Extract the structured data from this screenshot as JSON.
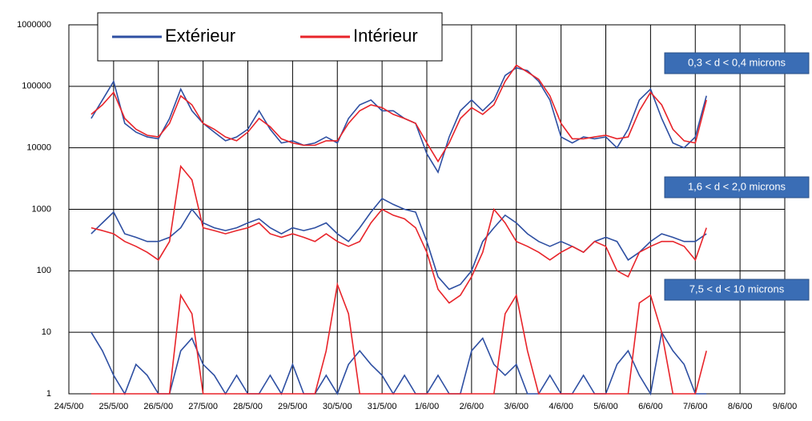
{
  "chart_data": {
    "type": "line",
    "x": [
      0.5,
      0.75,
      1,
      1.25,
      1.5,
      1.75,
      2,
      2.25,
      2.5,
      2.75,
      3,
      3.25,
      3.5,
      3.75,
      4,
      4.25,
      4.5,
      4.75,
      5,
      5.25,
      5.5,
      5.75,
      6,
      6.25,
      6.5,
      6.75,
      7,
      7.25,
      7.5,
      7.75,
      8,
      8.25,
      8.5,
      8.75,
      9,
      9.25,
      9.5,
      9.75,
      10,
      10.25,
      10.5,
      10.75,
      11,
      11.25,
      11.5,
      11.75,
      12,
      12.25,
      12.5,
      12.75,
      13,
      13.25,
      13.5,
      13.75,
      14,
      14.25
    ],
    "series": [
      {
        "name": "Extérieur",
        "color": "#2e4fa2",
        "values": [
          30000,
          60000,
          120000,
          25000,
          18000,
          15000,
          14000,
          30000,
          90000,
          40000,
          25000,
          18000,
          13000,
          15000,
          20000,
          40000,
          20000,
          12000,
          13000,
          11000,
          12000,
          15000,
          12000,
          30000,
          50000,
          60000,
          40000,
          40000,
          30000,
          25000,
          8000,
          4000,
          15000,
          40000,
          60000,
          40000,
          60000,
          150000,
          200000,
          180000,
          120000,
          60000,
          15000,
          12000,
          15000,
          14000,
          15000,
          10000,
          20000,
          60000,
          90000,
          30000,
          12000,
          10000,
          15000,
          70000
        ]
      },
      {
        "name": "Intérieur",
        "color": "#e8242a",
        "values": [
          35000,
          50000,
          80000,
          30000,
          20000,
          16000,
          15000,
          25000,
          70000,
          50000,
          25000,
          20000,
          15000,
          13000,
          18000,
          30000,
          22000,
          14000,
          12000,
          11000,
          11000,
          13000,
          13000,
          25000,
          40000,
          50000,
          45000,
          35000,
          30000,
          25000,
          12000,
          6000,
          12000,
          30000,
          45000,
          35000,
          50000,
          120000,
          220000,
          170000,
          130000,
          70000,
          25000,
          14000,
          14000,
          15000,
          16000,
          14000,
          15000,
          40000,
          80000,
          50000,
          20000,
          13000,
          12000,
          60000
        ]
      },
      {
        "name": "Extérieur",
        "color": "#2e4fa2",
        "values": [
          400,
          600,
          900,
          400,
          350,
          300,
          300,
          350,
          500,
          1000,
          600,
          500,
          450,
          500,
          600,
          700,
          500,
          400,
          500,
          450,
          500,
          600,
          400,
          300,
          500,
          900,
          1500,
          1200,
          1000,
          900,
          300,
          80,
          50,
          60,
          100,
          300,
          500,
          800,
          600,
          400,
          300,
          250,
          300,
          250,
          200,
          300,
          350,
          300,
          150,
          200,
          300,
          400,
          350,
          300,
          300,
          400
        ]
      },
      {
        "name": "Intérieur",
        "color": "#e8242a",
        "values": [
          500,
          450,
          400,
          300,
          250,
          200,
          150,
          300,
          5000,
          3000,
          500,
          450,
          400,
          450,
          500,
          600,
          400,
          350,
          400,
          350,
          300,
          400,
          300,
          250,
          300,
          600,
          1000,
          800,
          700,
          500,
          200,
          50,
          30,
          40,
          80,
          200,
          1000,
          600,
          300,
          250,
          200,
          150,
          200,
          250,
          200,
          300,
          250,
          100,
          80,
          200,
          250,
          300,
          300,
          250,
          150,
          500
        ]
      },
      {
        "name": "Extérieur",
        "color": "#2e4fa2",
        "values": [
          10,
          5,
          2,
          1,
          3,
          2,
          1,
          1,
          5,
          8,
          3,
          2,
          1,
          2,
          1,
          1,
          2,
          1,
          3,
          1,
          1,
          2,
          1,
          3,
          5,
          3,
          2,
          1,
          2,
          1,
          1,
          2,
          1,
          1,
          5,
          8,
          3,
          2,
          3,
          1,
          1,
          2,
          1,
          1,
          2,
          1,
          1,
          3,
          5,
          2,
          1,
          10,
          5,
          3,
          1,
          1
        ]
      },
      {
        "name": "Intérieur",
        "color": "#e8242a",
        "values": [
          1,
          1,
          1,
          1,
          1,
          1,
          1,
          1,
          40,
          20,
          1,
          1,
          1,
          1,
          1,
          1,
          1,
          1,
          1,
          1,
          1,
          5,
          60,
          20,
          1,
          1,
          1,
          1,
          1,
          1,
          1,
          1,
          1,
          1,
          1,
          1,
          1,
          20,
          40,
          5,
          1,
          1,
          1,
          1,
          1,
          1,
          1,
          1,
          1,
          30,
          40,
          10,
          1,
          1,
          1,
          5
        ]
      }
    ],
    "xlim": [
      0,
      16
    ],
    "xticks": [
      {
        "value": 0,
        "label": "24/5/00"
      },
      {
        "value": 1,
        "label": "25/5/00"
      },
      {
        "value": 2,
        "label": "26/5/00"
      },
      {
        "value": 3,
        "label": "27/5/00"
      },
      {
        "value": 4,
        "label": "28/5/00"
      },
      {
        "value": 5,
        "label": "29/5/00"
      },
      {
        "value": 6,
        "label": "30/5/00"
      },
      {
        "value": 7,
        "label": "31/5/00"
      },
      {
        "value": 8,
        "label": "1/6/00"
      },
      {
        "value": 9,
        "label": "2/6/00"
      },
      {
        "value": 10,
        "label": "3/6/00"
      },
      {
        "value": 11,
        "label": "4/6/00"
      },
      {
        "value": 12,
        "label": "5/6/00"
      },
      {
        "value": 13,
        "label": "6/6/00"
      },
      {
        "value": 14,
        "label": "7/6/00"
      },
      {
        "value": 15,
        "label": "8/6/00"
      },
      {
        "value": 16,
        "label": "9/6/00"
      }
    ],
    "ylim": [
      1,
      1000000
    ],
    "yticks": [
      1,
      10,
      100,
      1000,
      10000,
      100000,
      1000000
    ],
    "log_y": true,
    "grid": true,
    "legend": "top-left",
    "annotations": [
      "0,3 < d < 0,4 microns",
      "1,6 < d < 2,0 microns",
      "7,5 < d < 10 microns"
    ],
    "annotation_color": "#3a6db5"
  }
}
